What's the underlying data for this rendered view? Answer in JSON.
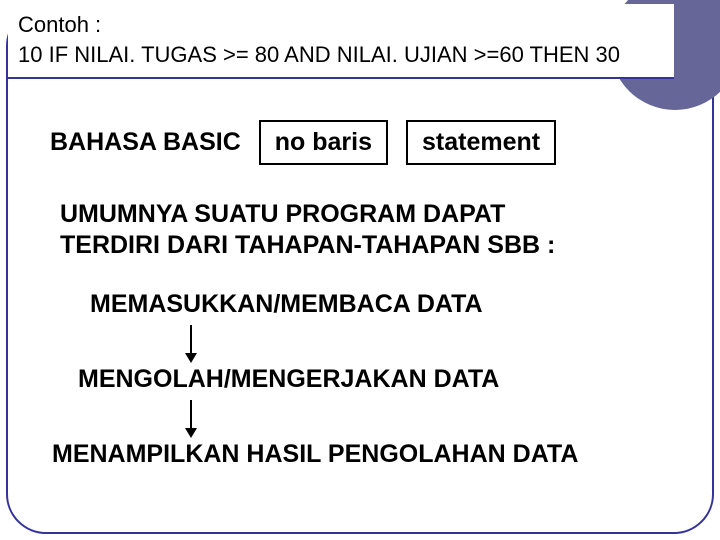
{
  "header": {
    "line1": "Contoh :",
    "line2": "10 IF NILAI. TUGAS >= 80 AND NILAI. UJIAN >=60 THEN 30"
  },
  "labels": {
    "basic": "BAHASA BASIC",
    "box1": "no baris",
    "box2": "statement"
  },
  "paragraph": {
    "line1": "UMUMNYA SUATU PROGRAM DAPAT",
    "line2": "TERDIRI DARI TAHAPAN-TAHAPAN SBB :"
  },
  "steps": {
    "s1": "MEMASUKKAN/MEMBACA DATA",
    "s2": "MENGOLAH/MENGERJAKAN DATA",
    "s3": "MENAMPILKAN HASIL PENGOLAHAN DATA"
  },
  "colors": {
    "accent": "#333399",
    "circle": "#666699",
    "text": "#000000",
    "bg": "#ffffff"
  },
  "typography": {
    "header_fontsize": 22,
    "body_fontsize": 25,
    "font_family": "Arial"
  }
}
